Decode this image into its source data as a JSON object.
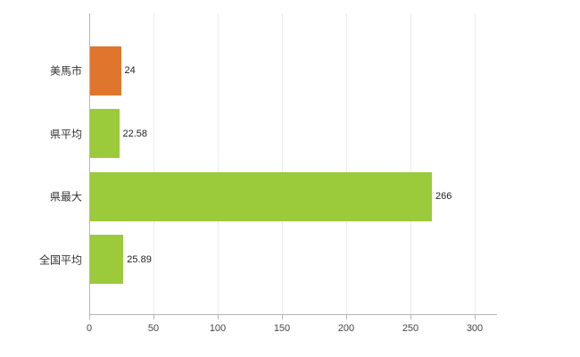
{
  "chart_data": {
    "type": "bar",
    "orientation": "horizontal",
    "title": "",
    "xlabel": "",
    "ylabel": "",
    "categories": [
      "美馬市",
      "県平均",
      "県最大",
      "全国平均"
    ],
    "values": [
      24,
      22.58,
      266,
      25.89
    ],
    "value_labels": [
      "24",
      "22.58",
      "266",
      "25.89"
    ],
    "bar_colors": [
      "#e0762d",
      "#9bca3b",
      "#9bca3b",
      "#9bca3b"
    ],
    "xlim": [
      0,
      300
    ],
    "x_ticks": [
      "0",
      "50",
      "100",
      "150",
      "200",
      "250",
      "300"
    ],
    "x_tick_values": [
      0,
      50,
      100,
      150,
      200,
      250,
      300
    ],
    "grid": "vertical-light",
    "legend": "none"
  },
  "colors": {
    "highlight_bar": "#e0762d",
    "default_bar": "#9bca3b",
    "axis": "#b5b5b5",
    "gridline": "#ececec",
    "text": "#333333",
    "background": "#ffffff"
  }
}
